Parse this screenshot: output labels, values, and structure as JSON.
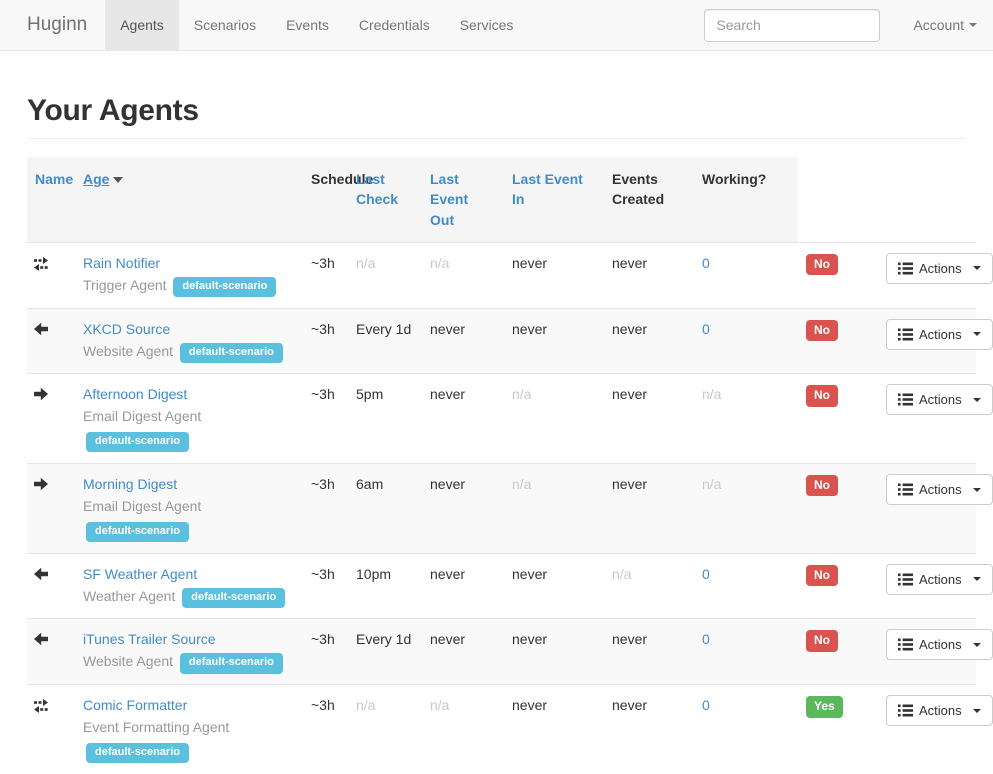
{
  "colors": {
    "link_blue": "#428bca",
    "scenario_badge": "#5bc0de",
    "working_no": "#d9534f",
    "working_yes": "#5cb85c",
    "navbar_bg": "#f8f8f8",
    "header_row_bg": "#f5f5f5",
    "stripe_bg": "#f9f9f9"
  },
  "navbar": {
    "brand": "Huginn",
    "items": [
      {
        "label": "Agents",
        "active": true
      },
      {
        "label": "Scenarios",
        "active": false
      },
      {
        "label": "Events",
        "active": false
      },
      {
        "label": "Credentials",
        "active": false
      },
      {
        "label": "Services",
        "active": false
      }
    ],
    "search": {
      "placeholder": "Search"
    },
    "account_label": "Account"
  },
  "page": {
    "title": "Your Agents"
  },
  "table": {
    "headers": [
      {
        "label": "Name",
        "variant": "link"
      },
      {
        "label": "Age",
        "variant": "link-sort",
        "sorted": true
      },
      {
        "label": "Schedule",
        "variant": "plain"
      },
      {
        "label": "Last Check",
        "variant": "link"
      },
      {
        "label": "Last Event Out",
        "variant": "link"
      },
      {
        "label": "Last Event In",
        "variant": "link"
      },
      {
        "label": "Events Created",
        "variant": "plain"
      },
      {
        "label": "Working?",
        "variant": "plain"
      }
    ],
    "actions_label": "Actions",
    "rows": [
      {
        "icon": "exchange-icon",
        "name": "Rain Notifier",
        "type": "Trigger Agent",
        "scenario": "default-scenario",
        "age": "~3h",
        "schedule": {
          "text": "n/a",
          "muted": true
        },
        "last_check": {
          "text": "n/a",
          "muted": true
        },
        "last_event_out": {
          "text": "never",
          "muted": false
        },
        "last_event_in": {
          "text": "never",
          "muted": false
        },
        "events_created": {
          "text": "0",
          "link": true
        },
        "working": {
          "text": "No",
          "variant": "danger"
        }
      },
      {
        "icon": "arrow-left-icon",
        "name": "XKCD Source",
        "type": "Website Agent",
        "scenario": "default-scenario",
        "age": "~3h",
        "schedule": {
          "text": "Every 1d",
          "muted": false
        },
        "last_check": {
          "text": "never",
          "muted": false
        },
        "last_event_out": {
          "text": "never",
          "muted": false
        },
        "last_event_in": {
          "text": "never",
          "muted": false
        },
        "events_created": {
          "text": "0",
          "link": true
        },
        "working": {
          "text": "No",
          "variant": "danger"
        }
      },
      {
        "icon": "arrow-right-icon",
        "name": "Afternoon Digest",
        "type": "Email Digest Agent",
        "scenario": "default-scenario",
        "age": "~3h",
        "schedule": {
          "text": "5pm",
          "muted": false
        },
        "last_check": {
          "text": "never",
          "muted": false
        },
        "last_event_out": {
          "text": "n/a",
          "muted": true
        },
        "last_event_in": {
          "text": "never",
          "muted": false
        },
        "events_created": {
          "text": "n/a",
          "link": false,
          "muted": true
        },
        "working": {
          "text": "No",
          "variant": "danger"
        }
      },
      {
        "icon": "arrow-right-icon",
        "name": "Morning Digest",
        "type": "Email Digest Agent",
        "scenario": "default-scenario",
        "age": "~3h",
        "schedule": {
          "text": "6am",
          "muted": false
        },
        "last_check": {
          "text": "never",
          "muted": false
        },
        "last_event_out": {
          "text": "n/a",
          "muted": true
        },
        "last_event_in": {
          "text": "never",
          "muted": false
        },
        "events_created": {
          "text": "n/a",
          "link": false,
          "muted": true
        },
        "working": {
          "text": "No",
          "variant": "danger"
        }
      },
      {
        "icon": "arrow-left-icon",
        "name": "SF Weather Agent",
        "type": "Weather Agent",
        "scenario": "default-scenario",
        "age": "~3h",
        "schedule": {
          "text": "10pm",
          "muted": false
        },
        "last_check": {
          "text": "never",
          "muted": false
        },
        "last_event_out": {
          "text": "never",
          "muted": false
        },
        "last_event_in": {
          "text": "n/a",
          "muted": true
        },
        "events_created": {
          "text": "0",
          "link": true
        },
        "working": {
          "text": "No",
          "variant": "danger"
        }
      },
      {
        "icon": "arrow-left-icon",
        "name": "iTunes Trailer Source",
        "type": "Website Agent",
        "scenario": "default-scenario",
        "age": "~3h",
        "schedule": {
          "text": "Every 1d",
          "muted": false
        },
        "last_check": {
          "text": "never",
          "muted": false
        },
        "last_event_out": {
          "text": "never",
          "muted": false
        },
        "last_event_in": {
          "text": "never",
          "muted": false
        },
        "events_created": {
          "text": "0",
          "link": true
        },
        "working": {
          "text": "No",
          "variant": "danger"
        }
      },
      {
        "icon": "exchange-icon",
        "name": "Comic Formatter",
        "type": "Event Formatting Agent",
        "scenario": "default-scenario",
        "age": "~3h",
        "schedule": {
          "text": "n/a",
          "muted": true
        },
        "last_check": {
          "text": "n/a",
          "muted": true
        },
        "last_event_out": {
          "text": "never",
          "muted": false
        },
        "last_event_in": {
          "text": "never",
          "muted": false
        },
        "events_created": {
          "text": "0",
          "link": true
        },
        "working": {
          "text": "Yes",
          "variant": "success"
        }
      }
    ]
  }
}
